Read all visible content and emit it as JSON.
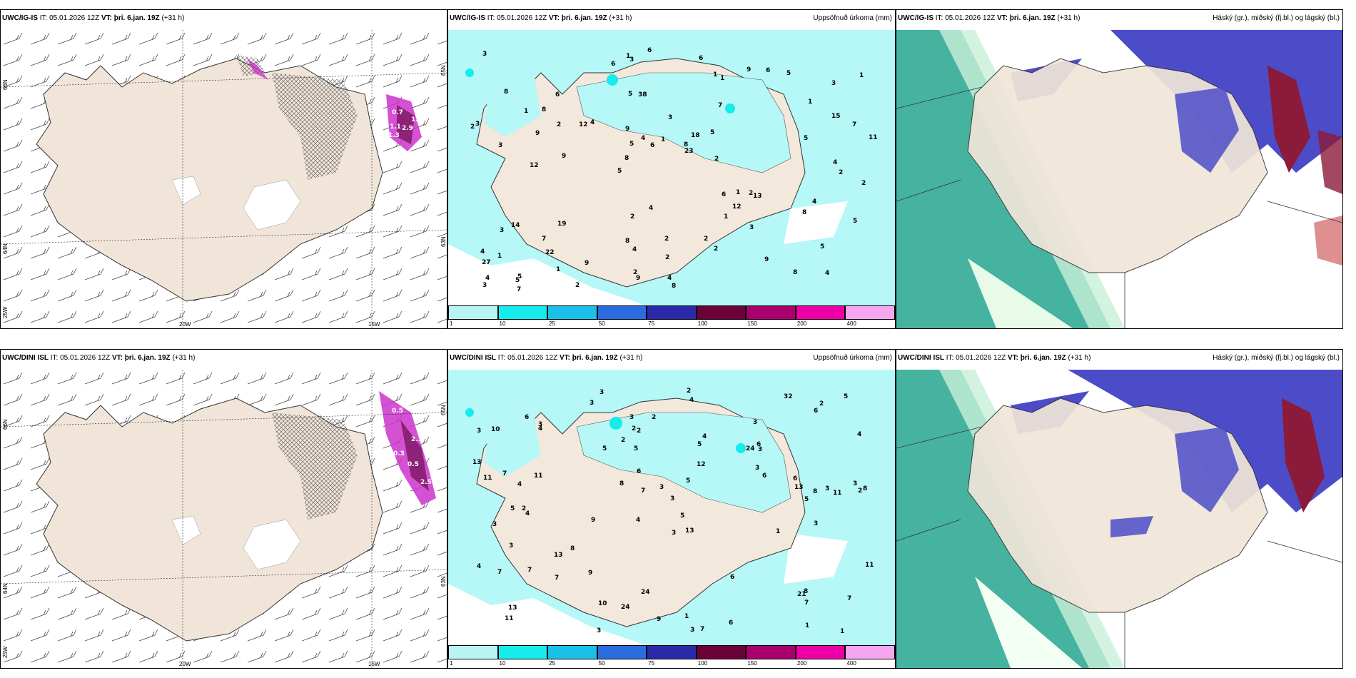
{
  "header": {
    "it_label": "IT:",
    "it_value": "05.01.2026 12Z",
    "vt_label": "VT:",
    "vt_value": "þri. 6.jan. 19Z",
    "lead": "(+31 h)"
  },
  "rows": [
    {
      "model": "UWC/IG-IS",
      "wind_panel": {
        "lat_top": "66N",
        "lat_bottom": "64N",
        "lon_left": "25W",
        "lon_mid": "20W",
        "lon_right": "15W",
        "lat_right": "65N",
        "lat_right2": "63N"
      },
      "precip_title": "Uppsöfnuð úrkoma (mm)",
      "cloud_title": "Háský (gr.), miðský (fj.bl.) og lágský (bl.)",
      "wind_values": [
        "0.7",
        "1.1",
        "1.9",
        "1.3",
        "2.9"
      ],
      "precip_values": [
        "4",
        "3",
        "3",
        "5",
        "7",
        "5",
        "5",
        "3",
        "14",
        "4",
        "27",
        "22",
        "38",
        "18",
        "13",
        "8",
        "3",
        "11",
        "6",
        "15",
        "8",
        "8",
        "5",
        "6",
        "9",
        "19",
        "8",
        "5",
        "2",
        "8",
        "12",
        "9",
        "1",
        "1",
        "7",
        "8",
        "4",
        "4",
        "23",
        "3",
        "1",
        "1",
        "12",
        "2",
        "7",
        "7",
        "3",
        "2",
        "5",
        "6",
        "9",
        "3",
        "8",
        "6",
        "5",
        "6",
        "6",
        "4",
        "5",
        "2",
        "9",
        "1",
        "2",
        "4",
        "3",
        "1",
        "2",
        "9",
        "2",
        "1",
        "1",
        "2",
        "4",
        "2",
        "5",
        "4",
        "9",
        "4",
        "2",
        "1",
        "2",
        "5",
        "3",
        "6",
        "8",
        "2",
        "9",
        "1",
        "1",
        "12",
        "2",
        "4"
      ]
    },
    {
      "model": "UWC/DINI ISL",
      "wind_panel": {
        "lat_top": "66N",
        "lat_bottom": "64N",
        "lon_left": "25W",
        "lon_mid": "20W",
        "lon_right": "15W",
        "lat_right": "65N",
        "lat_right2": "63N"
      },
      "precip_title": "Uppsöfnuð úrkoma (mm)",
      "cloud_title": "Háský (gr.), miðský (fj.bl.) og lágský (bl.)",
      "wind_values": [
        "0.5",
        "2.1",
        "0.3",
        "0.5",
        "2.5"
      ],
      "precip_values": [
        "3",
        "3",
        "2",
        "4",
        "13",
        "2",
        "10",
        "24",
        "3",
        "5",
        "3",
        "11",
        "3",
        "9",
        "3",
        "7",
        "24",
        "32",
        "6",
        "13",
        "4",
        "5",
        "8",
        "3",
        "4",
        "7",
        "7",
        "13",
        "8",
        "7",
        "21",
        "4",
        "7",
        "8",
        "6",
        "11",
        "6",
        "24",
        "5",
        "2",
        "13",
        "3",
        "6",
        "6",
        "9",
        "3",
        "7",
        "6",
        "13",
        "5",
        "2",
        "5",
        "5",
        "6",
        "4",
        "7",
        "6",
        "3",
        "2",
        "5",
        "7",
        "3",
        "3",
        "9",
        "3",
        "11",
        "8",
        "4",
        "5",
        "4",
        "3",
        "3",
        "3",
        "3",
        "12",
        "11",
        "10",
        "4",
        "11",
        "8",
        "2",
        "1",
        "1",
        "3",
        "2",
        "2",
        "1",
        "1"
      ]
    }
  ],
  "legend": {
    "ticks": [
      "1",
      "10",
      "25",
      "50",
      "75",
      "100",
      "150",
      "200",
      "400"
    ],
    "colors": [
      "#b9f4f4",
      "#16ecec",
      "#19c1e8",
      "#2b6be0",
      "#2a2aa8",
      "#6c0039",
      "#a8006c",
      "#ed00a6",
      "#f6a6ef"
    ]
  },
  "colors": {
    "land": "#f0e5d8",
    "sea": "#ffffff",
    "precip_light": "#b6f7f7",
    "cloud_high": "#4c4cc8",
    "cloud_mid": "#8c1a3a",
    "cloud_low": "#26a690",
    "snow_hatch": "#555555",
    "wind_pink": "#cc33cc"
  }
}
